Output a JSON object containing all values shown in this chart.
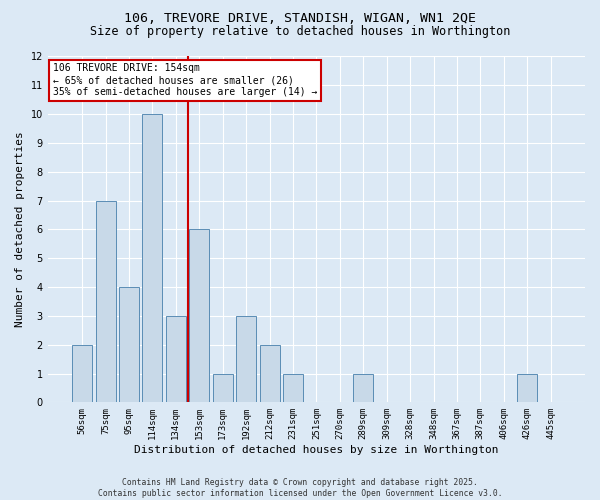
{
  "title1": "106, TREVORE DRIVE, STANDISH, WIGAN, WN1 2QE",
  "title2": "Size of property relative to detached houses in Worthington",
  "xlabel": "Distribution of detached houses by size in Worthington",
  "ylabel": "Number of detached properties",
  "categories": [
    "56sqm",
    "75sqm",
    "95sqm",
    "114sqm",
    "134sqm",
    "153sqm",
    "173sqm",
    "192sqm",
    "212sqm",
    "231sqm",
    "251sqm",
    "270sqm",
    "289sqm",
    "309sqm",
    "328sqm",
    "348sqm",
    "367sqm",
    "387sqm",
    "406sqm",
    "426sqm",
    "445sqm"
  ],
  "values": [
    2,
    7,
    4,
    10,
    3,
    6,
    1,
    3,
    2,
    1,
    0,
    0,
    1,
    0,
    0,
    0,
    0,
    0,
    0,
    1,
    0
  ],
  "bar_color": "#c8d9e8",
  "bar_edge_color": "#5a8db5",
  "background_color": "#dce9f5",
  "grid_color": "#ffffff",
  "vline_x": 4.5,
  "vline_color": "#cc0000",
  "annotation_text": "106 TREVORE DRIVE: 154sqm\n← 65% of detached houses are smaller (26)\n35% of semi-detached houses are larger (14) →",
  "annotation_box_color": "#ffffff",
  "annotation_box_edge": "#cc0000",
  "ylim": [
    0,
    12
  ],
  "yticks": [
    0,
    1,
    2,
    3,
    4,
    5,
    6,
    7,
    8,
    9,
    10,
    11,
    12
  ],
  "footer": "Contains HM Land Registry data © Crown copyright and database right 2025.\nContains public sector information licensed under the Open Government Licence v3.0.",
  "title_fontsize": 9.5,
  "subtitle_fontsize": 8.5,
  "tick_fontsize": 6.5,
  "label_fontsize": 8,
  "footer_fontsize": 5.8,
  "annot_fontsize": 7
}
